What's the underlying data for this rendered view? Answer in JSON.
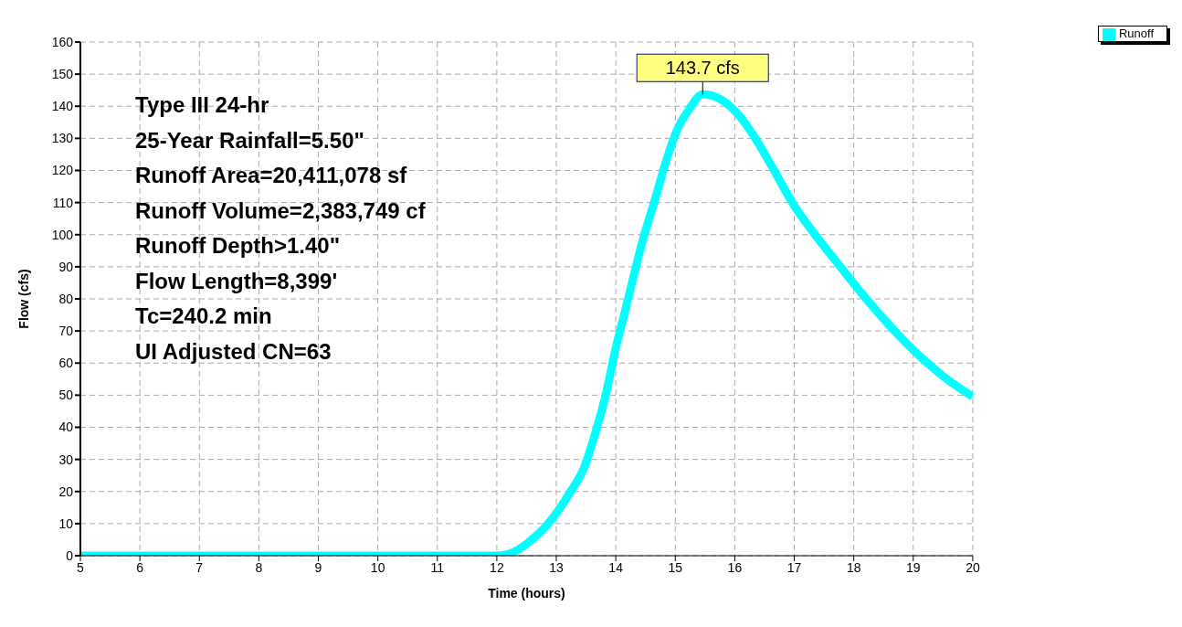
{
  "chart_data": {
    "type": "line",
    "xlabel": "Time  (hours)",
    "ylabel": "Flow  (cfs)",
    "x": [
      5,
      12,
      12.33,
      12.54,
      12.9,
      13.22,
      13.48,
      13.62,
      13.83,
      14.0,
      14.14,
      14.48,
      14.66,
      14.83,
      15.03,
      15.23,
      15.46,
      15.75,
      16.03,
      16.38,
      16.67,
      17.0,
      17.35,
      17.75,
      18.21,
      18.95,
      19.53,
      20.0
    ],
    "series": [
      {
        "name": "Runoff",
        "color": "#00ffff",
        "values": [
          0,
          0,
          1.6,
          4.3,
          10.8,
          19.4,
          28,
          36,
          50,
          64.7,
          75,
          100,
          111,
          122,
          132.6,
          139,
          143.7,
          142.3,
          138,
          129,
          119.7,
          109,
          100,
          90.6,
          80,
          65,
          55.5,
          49.5
        ]
      }
    ],
    "xlim": [
      5,
      20
    ],
    "xticks": [
      5,
      6,
      7,
      8,
      9,
      10,
      11,
      12,
      13,
      14,
      15,
      16,
      17,
      18,
      19,
      20
    ],
    "ylim": [
      0,
      160
    ],
    "yticks": [
      0,
      10,
      20,
      30,
      40,
      50,
      60,
      70,
      80,
      90,
      100,
      110,
      120,
      130,
      140,
      150,
      160
    ],
    "grid": true,
    "legend": "top right",
    "marker": "none",
    "line_style": "solid",
    "annotations": [
      {
        "text": "143.7 cfs",
        "x": 15.46,
        "y": 143.7
      },
      "Type III 24-hr",
      "25-Year Rainfall=5.50\"",
      "Runoff Area=20,411,078 sf",
      "Runoff Volume=2,383,749 cf",
      "Runoff Depth>1.40\"",
      "Flow Length=8,399'",
      "Tc=240.2 min",
      "UI Adjusted CN=63"
    ]
  }
}
